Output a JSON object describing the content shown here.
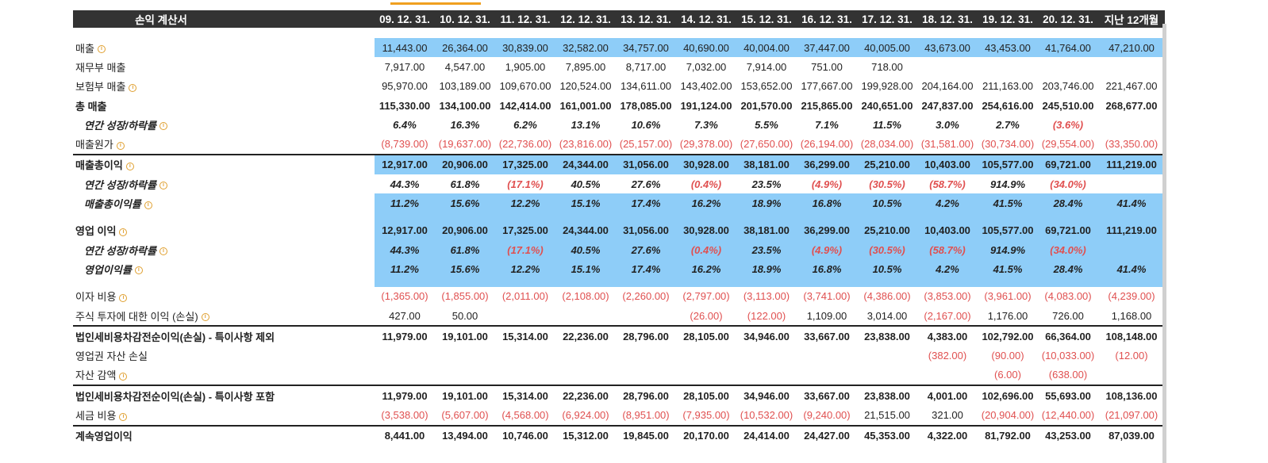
{
  "table": {
    "header": {
      "label": "손익 계산서",
      "periods": [
        "09. 12. 31.",
        "10. 12. 31.",
        "11. 12. 31.",
        "12. 12. 31.",
        "13. 12. 31.",
        "14. 12. 31.",
        "15. 12. 31.",
        "16. 12. 31.",
        "17. 12. 31.",
        "18. 12. 31.",
        "19. 12. 31.",
        "20. 12. 31.",
        "지난 12개월"
      ]
    },
    "rows": [
      {
        "label": "매출",
        "values": [
          "11,443.00",
          "26,364.00",
          "30,839.00",
          "32,582.00",
          "34,757.00",
          "40,690.00",
          "40,004.00",
          "37,447.00",
          "40,005.00",
          "43,673.00",
          "43,453.00",
          "41,764.00",
          "47,210.00"
        ]
      },
      {
        "label": "재무부 매출",
        "values": [
          "7,917.00",
          "4,547.00",
          "1,905.00",
          "7,895.00",
          "8,717.00",
          "7,032.00",
          "7,914.00",
          "751.00",
          "718.00",
          "",
          "",
          "",
          ""
        ]
      },
      {
        "label": "보험부 매출",
        "values": [
          "95,970.00",
          "103,189.00",
          "109,670.00",
          "120,524.00",
          "134,611.00",
          "143,402.00",
          "153,652.00",
          "177,667.00",
          "199,928.00",
          "204,164.00",
          "211,163.00",
          "203,746.00",
          "221,467.00"
        ]
      },
      {
        "label": "총 매출",
        "values": [
          "115,330.00",
          "134,100.00",
          "142,414.00",
          "161,001.00",
          "178,085.00",
          "191,124.00",
          "201,570.00",
          "215,865.00",
          "240,651.00",
          "247,837.00",
          "254,616.00",
          "245,510.00",
          "268,677.00"
        ]
      },
      {
        "label": "연간 성장/하락률",
        "values": [
          "6.4%",
          "16.3%",
          "6.2%",
          "13.1%",
          "10.6%",
          "7.3%",
          "5.5%",
          "7.1%",
          "11.5%",
          "3.0%",
          "2.7%",
          "(3.6%)",
          ""
        ]
      },
      {
        "label": "매출원가",
        "values": [
          "(8,739.00)",
          "(19,637.00)",
          "(22,736.00)",
          "(23,816.00)",
          "(25,157.00)",
          "(29,378.00)",
          "(27,650.00)",
          "(26,194.00)",
          "(28,034.00)",
          "(31,581.00)",
          "(30,734.00)",
          "(29,554.00)",
          "(33,350.00)"
        ]
      },
      {
        "label": "매출총이익",
        "values": [
          "12,917.00",
          "20,906.00",
          "17,325.00",
          "24,344.00",
          "31,056.00",
          "30,928.00",
          "38,181.00",
          "36,299.00",
          "25,210.00",
          "10,403.00",
          "105,577.00",
          "69,721.00",
          "111,219.00"
        ]
      },
      {
        "label": "연간 성장/하락률",
        "values": [
          "44.3%",
          "61.8%",
          "(17.1%)",
          "40.5%",
          "27.6%",
          "(0.4%)",
          "23.5%",
          "(4.9%)",
          "(30.5%)",
          "(58.7%)",
          "914.9%",
          "(34.0%)",
          ""
        ]
      },
      {
        "label": "매출총이익률",
        "values": [
          "11.2%",
          "15.6%",
          "12.2%",
          "15.1%",
          "17.4%",
          "16.2%",
          "18.9%",
          "16.8%",
          "10.5%",
          "4.2%",
          "41.5%",
          "28.4%",
          "41.4%"
        ]
      },
      {
        "label": "영업 이익",
        "values": [
          "12,917.00",
          "20,906.00",
          "17,325.00",
          "24,344.00",
          "31,056.00",
          "30,928.00",
          "38,181.00",
          "36,299.00",
          "25,210.00",
          "10,403.00",
          "105,577.00",
          "69,721.00",
          "111,219.00"
        ]
      },
      {
        "label": "연간 성장/하락률",
        "values": [
          "44.3%",
          "61.8%",
          "(17.1%)",
          "40.5%",
          "27.6%",
          "(0.4%)",
          "23.5%",
          "(4.9%)",
          "(30.5%)",
          "(58.7%)",
          "914.9%",
          "(34.0%)",
          ""
        ]
      },
      {
        "label": "영업이익률",
        "values": [
          "11.2%",
          "15.6%",
          "12.2%",
          "15.1%",
          "17.4%",
          "16.2%",
          "18.9%",
          "16.8%",
          "10.5%",
          "4.2%",
          "41.5%",
          "28.4%",
          "41.4%"
        ]
      },
      {
        "label": "이자 비용",
        "values": [
          "(1,365.00)",
          "(1,855.00)",
          "(2,011.00)",
          "(2,108.00)",
          "(2,260.00)",
          "(2,797.00)",
          "(3,113.00)",
          "(3,741.00)",
          "(4,386.00)",
          "(3,853.00)",
          "(3,961.00)",
          "(4,083.00)",
          "(4,239.00)"
        ]
      },
      {
        "label": "주식 투자에 대한 이익 (손실)",
        "values": [
          "427.00",
          "50.00",
          "",
          "",
          "",
          "(26.00)",
          "(122.00)",
          "1,109.00",
          "3,014.00",
          "(2,167.00)",
          "1,176.00",
          "726.00",
          "1,168.00"
        ]
      },
      {
        "label": "법인세비용차감전순이익(손실) - 특이사항 제외",
        "values": [
          "11,979.00",
          "19,101.00",
          "15,314.00",
          "22,236.00",
          "28,796.00",
          "28,105.00",
          "34,946.00",
          "33,667.00",
          "23,838.00",
          "4,383.00",
          "102,792.00",
          "66,364.00",
          "108,148.00"
        ]
      },
      {
        "label": "영업권 자산 손실",
        "values": [
          "",
          "",
          "",
          "",
          "",
          "",
          "",
          "",
          "",
          "(382.00)",
          "(90.00)",
          "(10,033.00)",
          "(12.00)"
        ]
      },
      {
        "label": "자산 감액",
        "values": [
          "",
          "",
          "",
          "",
          "",
          "",
          "",
          "",
          "",
          "",
          "(6.00)",
          "(638.00)",
          ""
        ]
      },
      {
        "label": "법인세비용차감전순이익(손실) - 특이사항 포함",
        "values": [
          "11,979.00",
          "19,101.00",
          "15,314.00",
          "22,236.00",
          "28,796.00",
          "28,105.00",
          "34,946.00",
          "33,667.00",
          "23,838.00",
          "4,001.00",
          "102,696.00",
          "55,693.00",
          "108,136.00"
        ]
      },
      {
        "label": "세금 비용",
        "values": [
          "(3,538.00)",
          "(5,607.00)",
          "(4,568.00)",
          "(6,924.00)",
          "(8,951.00)",
          "(7,935.00)",
          "(10,532.00)",
          "(9,240.00)",
          "21,515.00",
          "321.00",
          "(20,904.00)",
          "(12,440.00)",
          "(21,097.00)"
        ]
      },
      {
        "label": "계속영업이익",
        "values": [
          "8,441.00",
          "13,494.00",
          "10,746.00",
          "15,312.00",
          "19,845.00",
          "20,170.00",
          "24,414.00",
          "24,427.00",
          "45,353.00",
          "4,322.00",
          "81,792.00",
          "43,253.00",
          "87,039.00"
        ]
      }
    ]
  }
}
